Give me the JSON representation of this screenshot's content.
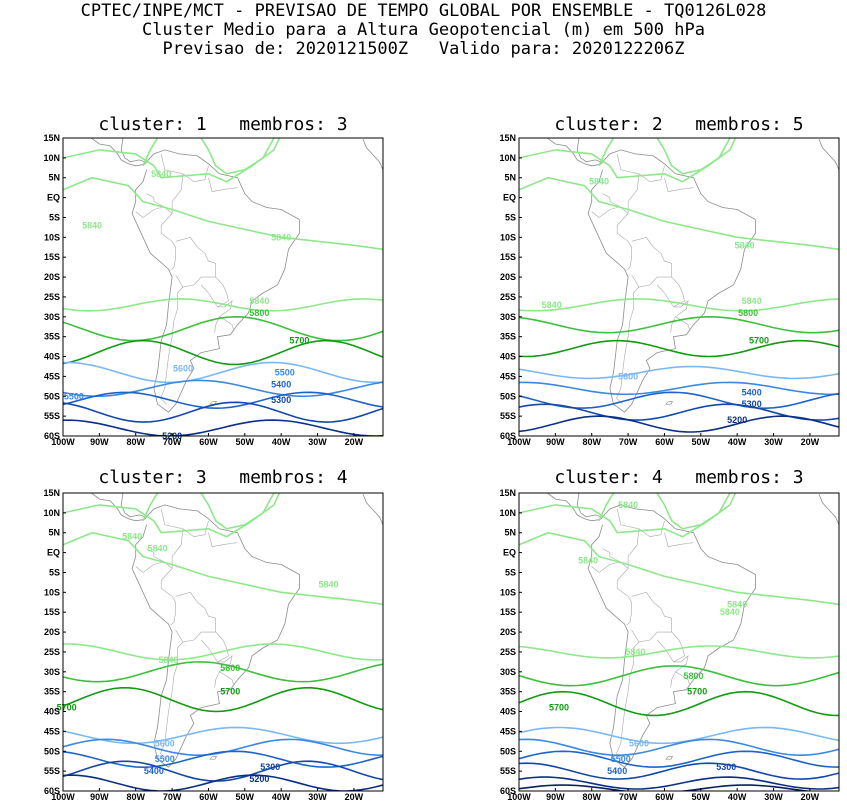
{
  "header": {
    "line1": "CPTEC/INPE/MCT - PREVISAO DE TEMPO GLOBAL POR ENSEMBLE - TQ0126L028",
    "line2": "Cluster Medio para a Altura Geopotencial (m) em 500 hPa",
    "line3": "Previsao de: 2020121500Z   Valido para: 2020122206Z"
  },
  "axes": {
    "lon_labels": [
      "100W",
      "90W",
      "80W",
      "70W",
      "60W",
      "50W",
      "40W",
      "30W",
      "20W"
    ],
    "lat_labels": [
      "15N",
      "10N",
      "5N",
      "EQ",
      "5S",
      "10S",
      "15S",
      "20S",
      "25S",
      "30S",
      "35S",
      "40S",
      "45S",
      "50S",
      "55S",
      "60S"
    ]
  },
  "colors": {
    "c5840": "#8ee88a",
    "c5800": "#3dbf3d",
    "c5700": "#139a13",
    "c5600": "#7ab8f2",
    "c5500": "#3c88e0",
    "c5400": "#1f63c8",
    "c5300": "#1448a8",
    "c5200": "#0b2f85",
    "c5100": "#081f60"
  },
  "panels": [
    {
      "title": "cluster: 1   membros: 3",
      "labels": [
        {
          "text": "5840",
          "lon": -73,
          "lat": 6,
          "c": "c5840"
        },
        {
          "text": "5840",
          "lon": -92,
          "lat": -7,
          "c": "c5840"
        },
        {
          "text": "5840",
          "lon": -40,
          "lat": -10,
          "c": "c5840"
        },
        {
          "text": "5840",
          "lon": -46,
          "lat": -26,
          "c": "c5840"
        },
        {
          "text": "5800",
          "lon": -46,
          "lat": -29,
          "c": "c5800"
        },
        {
          "text": "5700",
          "lon": -35,
          "lat": -36,
          "c": "c5700"
        },
        {
          "text": "5600",
          "lon": -67,
          "lat": -43,
          "c": "c5600"
        },
        {
          "text": "5500",
          "lon": -39,
          "lat": -44,
          "c": "c5500"
        },
        {
          "text": "5500",
          "lon": -97,
          "lat": -50,
          "c": "c5500"
        },
        {
          "text": "5400",
          "lon": -40,
          "lat": -47,
          "c": "c5400"
        },
        {
          "text": "5300",
          "lon": -40,
          "lat": -51,
          "c": "c5300"
        },
        {
          "text": "5200",
          "lon": -70,
          "lat": -60,
          "c": "c5200"
        }
      ]
    },
    {
      "title": "cluster: 2   membros: 5",
      "labels": [
        {
          "text": "5840",
          "lon": -78,
          "lat": 4,
          "c": "c5840"
        },
        {
          "text": "5840",
          "lon": -38,
          "lat": -12,
          "c": "c5840"
        },
        {
          "text": "5840",
          "lon": -91,
          "lat": -27,
          "c": "c5840"
        },
        {
          "text": "5840",
          "lon": -36,
          "lat": -26,
          "c": "c5840"
        },
        {
          "text": "5800",
          "lon": -37,
          "lat": -29,
          "c": "c5800"
        },
        {
          "text": "5700",
          "lon": -34,
          "lat": -36,
          "c": "c5700"
        },
        {
          "text": "5600",
          "lon": -70,
          "lat": -45,
          "c": "c5600"
        },
        {
          "text": "5400",
          "lon": -36,
          "lat": -49,
          "c": "c5400"
        },
        {
          "text": "5300",
          "lon": -36,
          "lat": -52,
          "c": "c5300"
        },
        {
          "text": "5200",
          "lon": -40,
          "lat": -56,
          "c": "c5200"
        }
      ]
    },
    {
      "title": "cluster: 3   membros: 4",
      "labels": [
        {
          "text": "5840",
          "lon": -81,
          "lat": 4,
          "c": "c5840"
        },
        {
          "text": "5840",
          "lon": -74,
          "lat": 1,
          "c": "c5840"
        },
        {
          "text": "5840",
          "lon": -27,
          "lat": -8,
          "c": "c5840"
        },
        {
          "text": "5840",
          "lon": -71,
          "lat": -27,
          "c": "c5840"
        },
        {
          "text": "5800",
          "lon": -54,
          "lat": -29,
          "c": "c5800"
        },
        {
          "text": "5700",
          "lon": -54,
          "lat": -35,
          "c": "c5700"
        },
        {
          "text": "5700",
          "lon": -99,
          "lat": -39,
          "c": "c5700"
        },
        {
          "text": "5600",
          "lon": -72,
          "lat": -48,
          "c": "c5600"
        },
        {
          "text": "5500",
          "lon": -72,
          "lat": -52,
          "c": "c5500"
        },
        {
          "text": "5400",
          "lon": -75,
          "lat": -55,
          "c": "c5400"
        },
        {
          "text": "5300",
          "lon": -43,
          "lat": -54,
          "c": "c5300"
        },
        {
          "text": "5200",
          "lon": -46,
          "lat": -57,
          "c": "c5200"
        }
      ]
    },
    {
      "title": "cluster: 4   membros: 3",
      "labels": [
        {
          "text": "5840",
          "lon": -70,
          "lat": 12,
          "c": "c5840"
        },
        {
          "text": "5840",
          "lon": -81,
          "lat": -2,
          "c": "c5840"
        },
        {
          "text": "5840",
          "lon": -40,
          "lat": -13,
          "c": "c5840"
        },
        {
          "text": "5840",
          "lon": -42,
          "lat": -15,
          "c": "c5840"
        },
        {
          "text": "5840",
          "lon": -68,
          "lat": -25,
          "c": "c5840"
        },
        {
          "text": "5800",
          "lon": -52,
          "lat": -31,
          "c": "c5800"
        },
        {
          "text": "5700",
          "lon": -51,
          "lat": -35,
          "c": "c5700"
        },
        {
          "text": "5700",
          "lon": -89,
          "lat": -39,
          "c": "c5700"
        },
        {
          "text": "5600",
          "lon": -67,
          "lat": -48,
          "c": "c5600"
        },
        {
          "text": "5500",
          "lon": -72,
          "lat": -52,
          "c": "c5500"
        },
        {
          "text": "5400",
          "lon": -73,
          "lat": -55,
          "c": "c5400"
        },
        {
          "text": "5300",
          "lon": -43,
          "lat": -54,
          "c": "c5300"
        }
      ]
    }
  ]
}
